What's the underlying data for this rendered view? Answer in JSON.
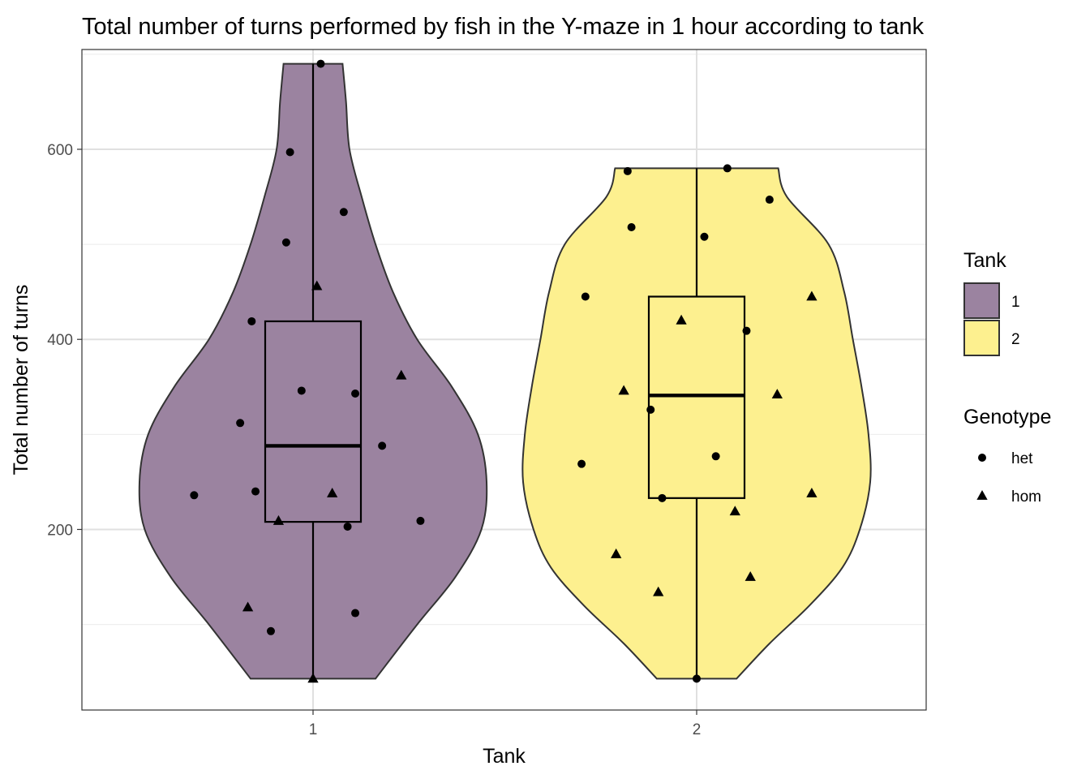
{
  "chart_data": {
    "type": "violin",
    "title": "Total number of turns performed by fish in the Y-maze in 1 hour according to tank",
    "xlabel": "Tank",
    "ylabel": "Total number of turns",
    "categories": [
      "1",
      "2"
    ],
    "yticks": [
      200,
      400,
      600
    ],
    "ylim": [
      10,
      705
    ],
    "grid": true,
    "legend_position": "right",
    "fill_legend": {
      "title": "Tank",
      "entries": [
        {
          "label": "1",
          "color": "#9b83a0"
        },
        {
          "label": "2",
          "color": "#fdf08f"
        }
      ]
    },
    "shape_legend": {
      "title": "Genotype",
      "entries": [
        {
          "label": "het",
          "shape": "circle"
        },
        {
          "label": "hom",
          "shape": "triangle"
        }
      ]
    },
    "violins": [
      {
        "category": "1",
        "color": "#9b83a0",
        "min": 43,
        "max": 690,
        "profile": [
          [
            43,
            0.36
          ],
          [
            100,
            0.6
          ],
          [
            150,
            0.82
          ],
          [
            200,
            0.97
          ],
          [
            250,
            1.0
          ],
          [
            300,
            0.95
          ],
          [
            350,
            0.8
          ],
          [
            400,
            0.6
          ],
          [
            450,
            0.46
          ],
          [
            500,
            0.36
          ],
          [
            550,
            0.28
          ],
          [
            600,
            0.21
          ],
          [
            650,
            0.19
          ],
          [
            690,
            0.17
          ]
        ],
        "box": {
          "q1": 208,
          "median": 288,
          "q3": 419,
          "whisker_low": 43,
          "whisker_high": 690
        }
      },
      {
        "category": "2",
        "color": "#fdf08f",
        "min": 43,
        "max": 580,
        "profile": [
          [
            43,
            0.23
          ],
          [
            80,
            0.42
          ],
          [
            120,
            0.65
          ],
          [
            160,
            0.84
          ],
          [
            200,
            0.94
          ],
          [
            250,
            1.0
          ],
          [
            300,
            0.99
          ],
          [
            350,
            0.95
          ],
          [
            400,
            0.9
          ],
          [
            450,
            0.85
          ],
          [
            500,
            0.76
          ],
          [
            550,
            0.52
          ],
          [
            580,
            0.47
          ]
        ],
        "box": {
          "q1": 233,
          "median": 341,
          "q3": 445,
          "whisker_low": 43,
          "whisker_high": 580
        }
      }
    ],
    "points": [
      {
        "tank": "1",
        "x": 1.02,
        "y": 690,
        "genotype": "het"
      },
      {
        "tank": "1",
        "x": 0.94,
        "y": 597,
        "genotype": "het"
      },
      {
        "tank": "1",
        "x": 1.08,
        "y": 534,
        "genotype": "het"
      },
      {
        "tank": "1",
        "x": 0.93,
        "y": 502,
        "genotype": "het"
      },
      {
        "tank": "1",
        "x": 1.01,
        "y": 456,
        "genotype": "hom"
      },
      {
        "tank": "1",
        "x": 0.84,
        "y": 419,
        "genotype": "het"
      },
      {
        "tank": "1",
        "x": 1.23,
        "y": 362,
        "genotype": "hom"
      },
      {
        "tank": "1",
        "x": 0.97,
        "y": 346,
        "genotype": "het"
      },
      {
        "tank": "1",
        "x": 1.11,
        "y": 343,
        "genotype": "het"
      },
      {
        "tank": "1",
        "x": 0.81,
        "y": 312,
        "genotype": "het"
      },
      {
        "tank": "1",
        "x": 1.18,
        "y": 288,
        "genotype": "het"
      },
      {
        "tank": "1",
        "x": 0.85,
        "y": 240,
        "genotype": "het"
      },
      {
        "tank": "1",
        "x": 1.05,
        "y": 238,
        "genotype": "hom"
      },
      {
        "tank": "1",
        "x": 0.69,
        "y": 236,
        "genotype": "het"
      },
      {
        "tank": "1",
        "x": 0.91,
        "y": 209,
        "genotype": "hom"
      },
      {
        "tank": "1",
        "x": 1.28,
        "y": 209,
        "genotype": "het"
      },
      {
        "tank": "1",
        "x": 1.09,
        "y": 203,
        "genotype": "het"
      },
      {
        "tank": "1",
        "x": 0.83,
        "y": 118,
        "genotype": "hom"
      },
      {
        "tank": "1",
        "x": 1.11,
        "y": 112,
        "genotype": "het"
      },
      {
        "tank": "1",
        "x": 0.89,
        "y": 93,
        "genotype": "het"
      },
      {
        "tank": "1",
        "x": 1.0,
        "y": 43,
        "genotype": "hom"
      },
      {
        "tank": "2",
        "x": 2.08,
        "y": 580,
        "genotype": "het"
      },
      {
        "tank": "2",
        "x": 1.82,
        "y": 577,
        "genotype": "het"
      },
      {
        "tank": "2",
        "x": 2.19,
        "y": 547,
        "genotype": "het"
      },
      {
        "tank": "2",
        "x": 1.83,
        "y": 518,
        "genotype": "het"
      },
      {
        "tank": "2",
        "x": 2.02,
        "y": 508,
        "genotype": "het"
      },
      {
        "tank": "2",
        "x": 1.71,
        "y": 445,
        "genotype": "het"
      },
      {
        "tank": "2",
        "x": 2.3,
        "y": 445,
        "genotype": "hom"
      },
      {
        "tank": "2",
        "x": 1.96,
        "y": 420,
        "genotype": "hom"
      },
      {
        "tank": "2",
        "x": 2.13,
        "y": 409,
        "genotype": "het"
      },
      {
        "tank": "2",
        "x": 1.81,
        "y": 346,
        "genotype": "hom"
      },
      {
        "tank": "2",
        "x": 2.21,
        "y": 342,
        "genotype": "hom"
      },
      {
        "tank": "2",
        "x": 1.88,
        "y": 326,
        "genotype": "het"
      },
      {
        "tank": "2",
        "x": 2.05,
        "y": 277,
        "genotype": "het"
      },
      {
        "tank": "2",
        "x": 1.7,
        "y": 269,
        "genotype": "het"
      },
      {
        "tank": "2",
        "x": 2.3,
        "y": 238,
        "genotype": "hom"
      },
      {
        "tank": "2",
        "x": 1.91,
        "y": 233,
        "genotype": "het"
      },
      {
        "tank": "2",
        "x": 2.1,
        "y": 219,
        "genotype": "hom"
      },
      {
        "tank": "2",
        "x": 1.79,
        "y": 174,
        "genotype": "hom"
      },
      {
        "tank": "2",
        "x": 2.14,
        "y": 150,
        "genotype": "hom"
      },
      {
        "tank": "2",
        "x": 1.9,
        "y": 134,
        "genotype": "hom"
      },
      {
        "tank": "2",
        "x": 2.0,
        "y": 43,
        "genotype": "het"
      }
    ]
  }
}
